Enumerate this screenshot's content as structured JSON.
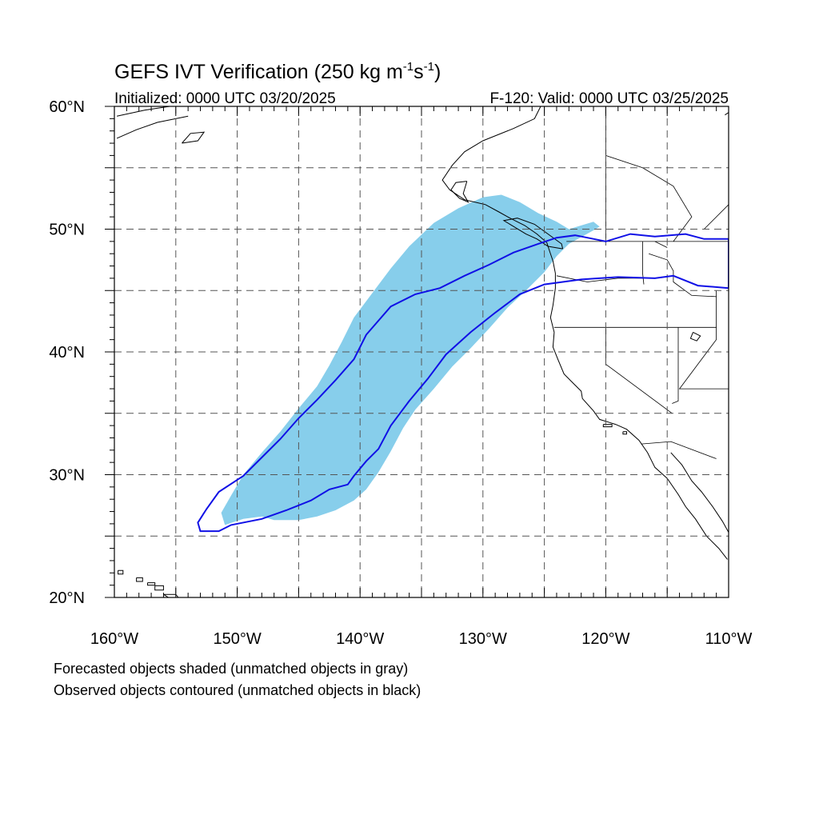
{
  "title": {
    "main": "GEFS IVT Verification (250 kg m",
    "exp1": "-1",
    "mid": "s",
    "exp2": "-1",
    "end": ")"
  },
  "subtitle": {
    "left": "Initialized: 0000 UTC 03/20/2025",
    "right": "F-120: Valid: 0000 UTC 03/25/2025"
  },
  "map": {
    "lon_range": [
      -160,
      -110
    ],
    "lat_range": [
      20,
      60
    ],
    "grid_spacing_deg": 5,
    "grid_style": "dashed",
    "lat_labels": [
      {
        "lat": 60,
        "text": "60°N"
      },
      {
        "lat": 50,
        "text": "50°N"
      },
      {
        "lat": 40,
        "text": "40°N"
      },
      {
        "lat": 30,
        "text": "30°N"
      },
      {
        "lat": 20,
        "text": "20°N"
      }
    ],
    "lon_labels": [
      {
        "lon": -160,
        "text": "160°W"
      },
      {
        "lon": -150,
        "text": "150°W"
      },
      {
        "lon": -140,
        "text": "140°W"
      },
      {
        "lon": -130,
        "text": "130°W"
      },
      {
        "lon": -120,
        "text": "120°W"
      },
      {
        "lon": -110,
        "text": "110°W"
      }
    ],
    "colors": {
      "forecast_fill": "#87ceeb",
      "observed_contour": "#1010e6",
      "coast": "#000000",
      "grid": "#555555"
    },
    "forecast_object": [
      [
        -151.0,
        25.9
      ],
      [
        -149.5,
        26.4
      ],
      [
        -148,
        26.6
      ],
      [
        -147,
        26.3
      ],
      [
        -145,
        26.3
      ],
      [
        -143.5,
        26.6
      ],
      [
        -142,
        27.1
      ],
      [
        -140.5,
        27.9
      ],
      [
        -139.5,
        28.8
      ],
      [
        -138.5,
        30.2
      ],
      [
        -137.5,
        31.9
      ],
      [
        -136.5,
        33.8
      ],
      [
        -135.5,
        35.3
      ],
      [
        -134,
        37.0
      ],
      [
        -132.5,
        38.8
      ],
      [
        -131,
        40.3
      ],
      [
        -129.5,
        41.9
      ],
      [
        -128,
        43.6
      ],
      [
        -126.5,
        45.0
      ],
      [
        -125,
        46.5
      ],
      [
        -124,
        47.8
      ],
      [
        -123,
        48.8
      ],
      [
        -121,
        49.9
      ],
      [
        -120.5,
        50.2
      ],
      [
        -121,
        50.6
      ],
      [
        -123,
        50.0
      ],
      [
        -124,
        50.6
      ],
      [
        -125.5,
        51.3
      ],
      [
        -127,
        52.2
      ],
      [
        -128.5,
        52.8
      ],
      [
        -130,
        52.6
      ],
      [
        -132,
        51.7
      ],
      [
        -134,
        50.5
      ],
      [
        -136,
        48.6
      ],
      [
        -137.5,
        46.8
      ],
      [
        -139,
        44.8
      ],
      [
        -140.5,
        42.8
      ],
      [
        -141.5,
        40.8
      ],
      [
        -142.5,
        38.9
      ],
      [
        -143.5,
        37.2
      ],
      [
        -145,
        35.4
      ],
      [
        -146.5,
        33.5
      ],
      [
        -148,
        31.8
      ],
      [
        -149.5,
        30.0
      ],
      [
        -150.5,
        28.3
      ],
      [
        -151.3,
        26.9
      ]
    ],
    "observed_object": [
      [
        -153.0,
        25.4
      ],
      [
        -151.5,
        25.4
      ],
      [
        -150.5,
        25.9
      ],
      [
        -148,
        26.4
      ],
      [
        -146,
        27.1
      ],
      [
        -144,
        27.9
      ],
      [
        -142.5,
        28.8
      ],
      [
        -141,
        29.2
      ],
      [
        -140.5,
        29.9
      ],
      [
        -139.5,
        31.1
      ],
      [
        -138.5,
        32.1
      ],
      [
        -137.5,
        34.0
      ],
      [
        -136,
        36.0
      ],
      [
        -134.5,
        37.8
      ],
      [
        -133,
        39.8
      ],
      [
        -131,
        41.6
      ],
      [
        -129,
        43.2
      ],
      [
        -127,
        44.7
      ],
      [
        -125,
        45.5
      ],
      [
        -122,
        45.9
      ],
      [
        -119,
        46.1
      ],
      [
        -116,
        46.0
      ],
      [
        -114.5,
        46.2
      ],
      [
        -112.5,
        45.4
      ],
      [
        -110,
        45.2
      ],
      [
        -110,
        49.2
      ],
      [
        -112,
        49.2
      ],
      [
        -113.5,
        49.6
      ],
      [
        -116,
        49.4
      ],
      [
        -118,
        49.6
      ],
      [
        -120,
        49.0
      ],
      [
        -121.5,
        49.3
      ],
      [
        -122.5,
        49.5
      ],
      [
        -124,
        49.3
      ],
      [
        -125.5,
        48.8
      ],
      [
        -127.5,
        48.1
      ],
      [
        -129.5,
        47.1
      ],
      [
        -131.5,
        46.2
      ],
      [
        -133.5,
        45.2
      ],
      [
        -135.5,
        44.7
      ],
      [
        -137.5,
        43.7
      ],
      [
        -139.5,
        41.4
      ],
      [
        -140.5,
        39.4
      ],
      [
        -142,
        37.7
      ],
      [
        -143.5,
        36.1
      ],
      [
        -145,
        34.6
      ],
      [
        -146.5,
        32.9
      ],
      [
        -148,
        31.4
      ],
      [
        -149.5,
        29.9
      ],
      [
        -151.5,
        28.6
      ],
      [
        -152.5,
        27.2
      ],
      [
        -153.2,
        26.1
      ]
    ],
    "coastlines": [
      [
        [
          -125.3,
          60
        ],
        [
          -125.8,
          59
        ],
        [
          -127.5,
          58.2
        ],
        [
          -130,
          57.2
        ],
        [
          -131.5,
          56.3
        ],
        [
          -132.5,
          55.2
        ],
        [
          -133.3,
          54.0
        ],
        [
          -132.7,
          53.2
        ],
        [
          -131.5,
          52.4
        ],
        [
          -129.8,
          52.0
        ],
        [
          -128.7,
          51.4
        ],
        [
          -127.8,
          50.9
        ],
        [
          -126.6,
          50.3
        ],
        [
          -125.6,
          49.6
        ],
        [
          -124.8,
          48.9
        ],
        [
          -124.6,
          48.3
        ],
        [
          -124.3,
          47.4
        ],
        [
          -124.1,
          46.4
        ],
        [
          -124.1,
          45.2
        ],
        [
          -124.3,
          43.8
        ],
        [
          -124.5,
          42.8
        ],
        [
          -124.2,
          41.6
        ],
        [
          -124.3,
          40.4
        ],
        [
          -123.9,
          39.4
        ],
        [
          -123.4,
          38.2
        ],
        [
          -122.7,
          37.5
        ],
        [
          -122.0,
          36.8
        ],
        [
          -121.9,
          36.2
        ],
        [
          -121.0,
          35.2
        ],
        [
          -120.5,
          34.5
        ],
        [
          -119.2,
          34.1
        ],
        [
          -118.3,
          33.7
        ],
        [
          -117.3,
          32.8
        ],
        [
          -116.6,
          31.8
        ],
        [
          -116.0,
          30.6
        ],
        [
          -115.0,
          29.7
        ],
        [
          -114.1,
          28.4
        ],
        [
          -113.5,
          27.4
        ],
        [
          -112.7,
          26.4
        ],
        [
          -111.8,
          25.0
        ],
        [
          -110.8,
          24.0
        ],
        [
          -110.1,
          23.1
        ]
      ],
      [
        [
          -114.7,
          31.8
        ],
        [
          -113.8,
          30.8
        ],
        [
          -113.0,
          29.5
        ],
        [
          -112.2,
          28.6
        ],
        [
          -111.3,
          27.4
        ],
        [
          -110.5,
          26.2
        ],
        [
          -110.0,
          25.3
        ]
      ],
      [
        [
          -123.5,
          48.4
        ],
        [
          -124.7,
          48.6
        ],
        [
          -125.6,
          49.2
        ],
        [
          -126.5,
          49.6
        ],
        [
          -127.8,
          50.4
        ],
        [
          -128.3,
          50.7
        ],
        [
          -127.2,
          50.9
        ],
        [
          -125.8,
          50.4
        ],
        [
          -124.7,
          49.6
        ],
        [
          -123.6,
          48.8
        ],
        [
          -123.5,
          48.4
        ]
      ],
      [
        [
          -131.3,
          53.9
        ],
        [
          -132.2,
          53.8
        ],
        [
          -132.6,
          53.2
        ],
        [
          -131.9,
          52.5
        ],
        [
          -131.2,
          52.2
        ],
        [
          -131.6,
          52.9
        ],
        [
          -131.3,
          53.9
        ]
      ],
      [
        [
          -159.8,
          59.2
        ],
        [
          -157.5,
          59.7
        ],
        [
          -155.5,
          60.0
        ]
      ],
      [
        [
          -159.8,
          57.4
        ],
        [
          -158.2,
          58.1
        ],
        [
          -156.5,
          58.7
        ],
        [
          -154.0,
          59.2
        ]
      ],
      [
        [
          -154.5,
          57.0
        ],
        [
          -153.8,
          57.8
        ],
        [
          -152.7,
          57.9
        ],
        [
          -153.2,
          57.2
        ],
        [
          -154.5,
          57.0
        ]
      ],
      [
        [
          -110.3,
          59.3
        ],
        [
          -110.0,
          59.5
        ]
      ]
    ],
    "borders": [
      [
        [
          -123.2,
          49.0
        ],
        [
          -120.0,
          49.0
        ],
        [
          -116.0,
          49.0
        ],
        [
          -110.0,
          49.0
        ]
      ],
      [
        [
          -124.0,
          46.2
        ],
        [
          -121.5,
          45.7
        ],
        [
          -119.0,
          46.0
        ],
        [
          -116.9,
          46.0
        ]
      ],
      [
        [
          -117.0,
          49.0
        ],
        [
          -117.0,
          46.4
        ],
        [
          -116.9,
          45.5
        ]
      ],
      [
        [
          -124.2,
          42.0
        ],
        [
          -120.0,
          42.0
        ],
        [
          -117.0,
          42.0
        ],
        [
          -114.0,
          42.0
        ],
        [
          -111.0,
          42.0
        ]
      ],
      [
        [
          -120.0,
          42.0
        ],
        [
          -120.0,
          39.0
        ],
        [
          -114.6,
          35.0
        ]
      ],
      [
        [
          -114.1,
          42.0
        ],
        [
          -114.1,
          36.0
        ],
        [
          -114.6,
          35.8
        ]
      ],
      [
        [
          -117.1,
          32.5
        ],
        [
          -114.7,
          32.7
        ],
        [
          -111.0,
          31.3
        ]
      ],
      [
        [
          -120.0,
          60.0
        ],
        [
          -120.0,
          49.0
        ]
      ],
      [
        [
          -116.0,
          49.0
        ],
        [
          -115.0,
          48.5
        ]
      ],
      [
        [
          -111.0,
          45.0
        ],
        [
          -111.0,
          41.0
        ],
        [
          -114.0,
          37.0
        ],
        [
          -110.0,
          37.0
        ]
      ],
      [
        [
          -116.5,
          48.0
        ],
        [
          -115.0,
          47.5
        ],
        [
          -114.5,
          46.6
        ],
        [
          -114.5,
          45.7
        ],
        [
          -113.0,
          44.6
        ],
        [
          -111.0,
          44.5
        ]
      ],
      [
        [
          -120.0,
          56.0
        ],
        [
          -117.0,
          55.0
        ],
        [
          -114.5,
          53.5
        ],
        [
          -113.0,
          51.0
        ],
        [
          -114.5,
          49.0
        ]
      ],
      [
        [
          -110.0,
          52.0
        ],
        [
          -112.0,
          50.0
        ]
      ]
    ],
    "lakes": [
      [
        [
          -112.9,
          41.6
        ],
        [
          -112.3,
          41.3
        ],
        [
          -112.6,
          40.9
        ],
        [
          -113.1,
          41.1
        ],
        [
          -112.9,
          41.6
        ]
      ]
    ],
    "islands": [
      [
        [
          -159.7,
          22.2
        ],
        [
          -159.3,
          22.2
        ],
        [
          -159.3,
          21.9
        ],
        [
          -159.7,
          21.9
        ],
        [
          -159.7,
          22.2
        ]
      ],
      [
        [
          -158.2,
          21.6
        ],
        [
          -157.7,
          21.6
        ],
        [
          -157.7,
          21.3
        ],
        [
          -158.2,
          21.3
        ],
        [
          -158.2,
          21.6
        ]
      ],
      [
        [
          -157.3,
          21.2
        ],
        [
          -156.7,
          21.2
        ],
        [
          -156.7,
          21.0
        ],
        [
          -157.3,
          21.0
        ],
        [
          -157.3,
          21.2
        ]
      ],
      [
        [
          -156.7,
          20.95
        ],
        [
          -156.0,
          20.95
        ],
        [
          -156.0,
          20.6
        ],
        [
          -156.7,
          20.6
        ],
        [
          -156.7,
          20.95
        ]
      ],
      [
        [
          -156.0,
          20.25
        ],
        [
          -155.0,
          20.25
        ],
        [
          -154.8,
          20.0
        ],
        [
          -155.6,
          20.0
        ],
        [
          -156.0,
          20.25
        ]
      ],
      [
        [
          -118.6,
          33.5
        ],
        [
          -118.3,
          33.5
        ],
        [
          -118.3,
          33.3
        ],
        [
          -118.6,
          33.3
        ],
        [
          -118.6,
          33.5
        ]
      ],
      [
        [
          -120.2,
          34.1
        ],
        [
          -119.5,
          34.1
        ],
        [
          -119.5,
          33.9
        ],
        [
          -120.2,
          33.9
        ],
        [
          -120.2,
          34.1
        ]
      ]
    ]
  },
  "legend": {
    "line1": "Forecasted objects shaded (unmatched objects in gray)",
    "line2": "Observed objects contoured (unmatched objects in black)"
  }
}
